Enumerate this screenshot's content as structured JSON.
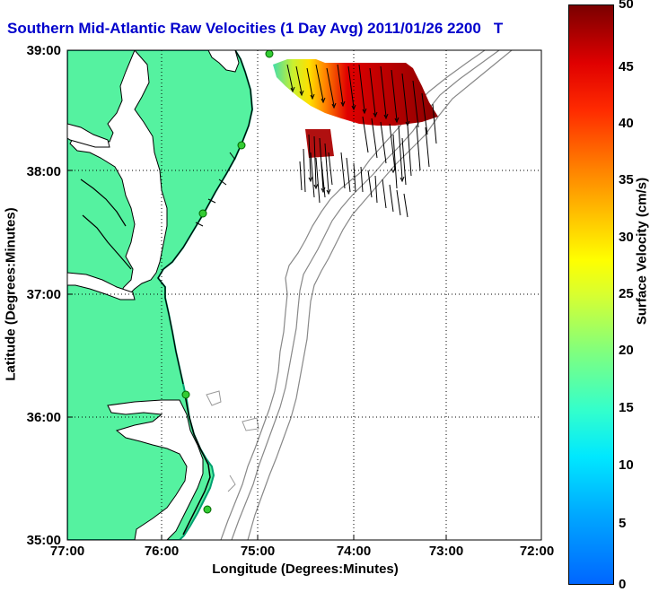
{
  "title": {
    "text": "Southern Mid-Atlantic Raw Velocities (1 Day Avg) 2011/01/26 2200",
    "suffix": "T",
    "color": "#0000cc"
  },
  "map": {
    "x_axis": {
      "label": "Longitude (Degrees:Minutes)",
      "ticks": [
        "77:00",
        "76:00",
        "75:00",
        "74:00",
        "73:00",
        "72:00"
      ],
      "range": [
        -77,
        -72
      ]
    },
    "y_axis": {
      "label": "Latitude (Degrees:Minutes)",
      "ticks": [
        "39:00",
        "38:00",
        "37:00",
        "36:00",
        "35:00"
      ],
      "range": [
        35,
        39
      ]
    },
    "grid": "dotted",
    "land_color": "#55f2a0",
    "land_edge_color": "#00a070",
    "coastline_color": "#000000",
    "bathymetry_color": "#888888",
    "station_color": "#33cc33"
  },
  "colorbar": {
    "label": "Surface Velocity (cm/s)",
    "ticks": [
      "0",
      "5",
      "10",
      "15",
      "20",
      "25",
      "30",
      "35",
      "40",
      "45",
      "50"
    ],
    "range": [
      0,
      50
    ]
  }
}
